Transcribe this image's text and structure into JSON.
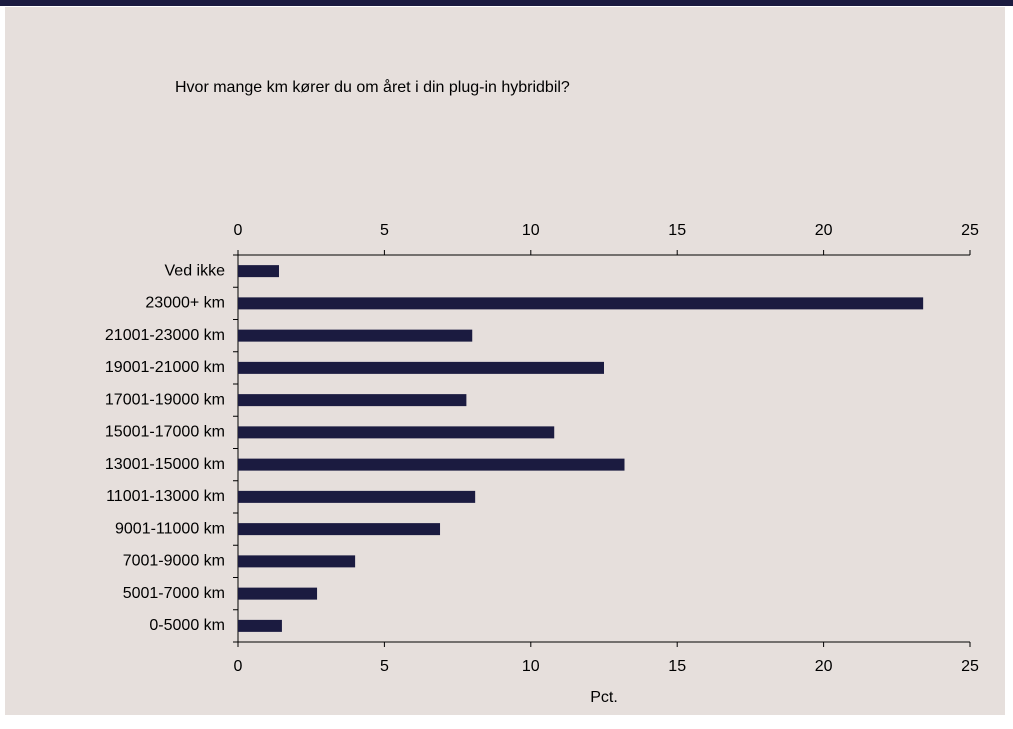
{
  "chart_data": {
    "type": "barh",
    "title": "Hvor mange km kører du om året i din plug-in hybridbil?",
    "categories": [
      "Ved ikke",
      "23000+ km",
      "21001-23000 km",
      "19001-21000 km",
      "17001-19000 km",
      "15001-17000 km",
      "13001-15000 km",
      "11001-13000 km",
      "9001-11000 km",
      "7001-9000 km",
      "5001-7000 km",
      "0-5000 km"
    ],
    "values": [
      1.4,
      23.4,
      8.0,
      12.5,
      7.8,
      10.8,
      13.2,
      8.1,
      6.9,
      4.0,
      2.7,
      1.5
    ],
    "color": "#1b1b40",
    "xlabel": "Pct.",
    "xlim": [
      0,
      25
    ],
    "xticks": [
      0,
      5,
      10,
      15,
      20,
      25
    ]
  }
}
